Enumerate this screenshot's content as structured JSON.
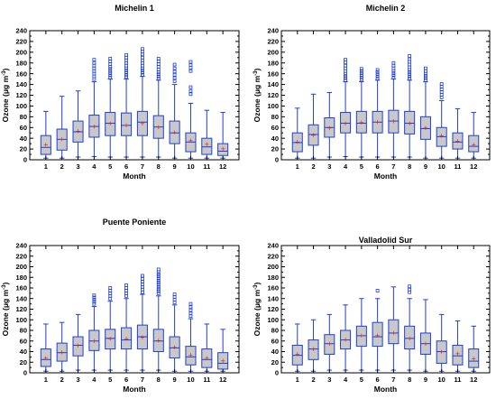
{
  "colors": {
    "box_fill": "#c8c8c8",
    "box_edge": "#1f3fd6",
    "median": "#1f3fd6",
    "mean": "#d62020",
    "outlier": "#1f3fd6"
  },
  "chart_data": [
    {
      "type": "box",
      "title": "Michelin 1",
      "xlabel": "Month",
      "ylabel_main": "Ozone (μg m",
      "ylabel_sup": "-3",
      "ylabel_close": ")",
      "ylim": [
        0,
        240
      ],
      "yticks": [
        "0",
        "20",
        "40",
        "60",
        "80",
        "100",
        "120",
        "140",
        "160",
        "180",
        "200",
        "220",
        "240"
      ],
      "categories": [
        "1",
        "2",
        "3",
        "4",
        "5",
        "6",
        "7",
        "8",
        "9",
        "10",
        "11",
        "12"
      ],
      "boxes": [
        {
          "whislo": 3,
          "q1": 10,
          "med": 23,
          "q3": 45,
          "whishi": 90,
          "mean": 28,
          "fliers": []
        },
        {
          "whislo": 3,
          "q1": 18,
          "med": 38,
          "q3": 57,
          "whishi": 118,
          "mean": 38,
          "fliers": []
        },
        {
          "whislo": 5,
          "q1": 33,
          "med": 52,
          "q3": 72,
          "whishi": 128,
          "mean": 53,
          "fliers": []
        },
        {
          "whislo": 6,
          "q1": 42,
          "med": 62,
          "q3": 83,
          "whishi": 145,
          "mean": 62,
          "fliers": [
            150,
            155,
            160,
            165,
            170,
            175,
            180,
            186
          ]
        },
        {
          "whislo": 5,
          "q1": 45,
          "med": 68,
          "q3": 88,
          "whishi": 150,
          "mean": 68,
          "fliers": [
            153,
            157,
            161,
            165,
            169,
            173,
            178,
            183,
            188
          ]
        },
        {
          "whislo": 5,
          "q1": 45,
          "med": 64,
          "q3": 87,
          "whishi": 150,
          "mean": 64,
          "fliers": [
            154,
            158,
            162,
            166,
            170,
            175,
            180,
            185,
            190,
            195
          ]
        },
        {
          "whislo": 5,
          "q1": 45,
          "med": 70,
          "q3": 90,
          "whishi": 155,
          "mean": 68,
          "fliers": [
            158,
            162,
            166,
            170,
            175,
            180,
            185,
            190,
            196,
            201,
            206
          ]
        },
        {
          "whislo": 5,
          "q1": 40,
          "med": 61,
          "q3": 82,
          "whishi": 148,
          "mean": 61,
          "fliers": [
            151,
            155,
            159,
            163,
            168,
            173,
            178,
            183,
            188
          ]
        },
        {
          "whislo": 3,
          "q1": 30,
          "med": 50,
          "q3": 72,
          "whishi": 140,
          "mean": 51,
          "fliers": [
            146,
            152,
            158,
            164,
            170,
            177
          ]
        },
        {
          "whislo": 3,
          "q1": 15,
          "med": 33,
          "q3": 50,
          "whishi": 105,
          "mean": 36,
          "fliers": [
            122,
            128,
            135,
            165,
            171,
            176,
            182
          ]
        },
        {
          "whislo": 3,
          "q1": 10,
          "med": 24,
          "q3": 40,
          "whishi": 92,
          "mean": 29,
          "fliers": []
        },
        {
          "whislo": 3,
          "q1": 8,
          "med": 16,
          "q3": 30,
          "whishi": 88,
          "mean": 21,
          "fliers": []
        }
      ]
    },
    {
      "type": "box",
      "title": "Michelin 2",
      "xlabel": "Month",
      "ylabel_main": "Ozone (μg m",
      "ylabel_sup": "-3",
      "ylabel_close": ")",
      "ylim": [
        0,
        240
      ],
      "yticks": [
        "0",
        "20",
        "40",
        "60",
        "80",
        "100",
        "120",
        "140",
        "160",
        "180",
        "200",
        "220",
        "240"
      ],
      "categories": [
        "1",
        "2",
        "3",
        "4",
        "5",
        "6",
        "7",
        "8",
        "9",
        "10",
        "11",
        "12"
      ],
      "boxes": [
        {
          "whislo": 3,
          "q1": 15,
          "med": 32,
          "q3": 50,
          "whishi": 96,
          "mean": 33,
          "fliers": []
        },
        {
          "whislo": 3,
          "q1": 27,
          "med": 47,
          "q3": 65,
          "whishi": 122,
          "mean": 46,
          "fliers": []
        },
        {
          "whislo": 5,
          "q1": 42,
          "med": 60,
          "q3": 78,
          "whishi": 125,
          "mean": 59,
          "fliers": []
        },
        {
          "whislo": 6,
          "q1": 50,
          "med": 68,
          "q3": 88,
          "whishi": 145,
          "mean": 68,
          "fliers": [
            148,
            152,
            156,
            160,
            165,
            170,
            175,
            181,
            186
          ]
        },
        {
          "whislo": 5,
          "q1": 50,
          "med": 68,
          "q3": 90,
          "whishi": 145,
          "mean": 69,
          "fliers": [
            149,
            153,
            157,
            161,
            165,
            169
          ]
        },
        {
          "whislo": 5,
          "q1": 50,
          "med": 70,
          "q3": 90,
          "whishi": 148,
          "mean": 70,
          "fliers": [
            151,
            155,
            159,
            163,
            167
          ]
        },
        {
          "whislo": 5,
          "q1": 50,
          "med": 72,
          "q3": 92,
          "whishi": 150,
          "mean": 72,
          "fliers": [
            153,
            157,
            161,
            165,
            170,
            175,
            180
          ]
        },
        {
          "whislo": 5,
          "q1": 48,
          "med": 68,
          "q3": 90,
          "whishi": 148,
          "mean": 68,
          "fliers": [
            151,
            155,
            159,
            163,
            167,
            172,
            177,
            182,
            187,
            193
          ]
        },
        {
          "whislo": 3,
          "q1": 38,
          "med": 58,
          "q3": 80,
          "whishi": 145,
          "mean": 59,
          "fliers": [
            148,
            152,
            156,
            160,
            165,
            170
          ]
        },
        {
          "whislo": 3,
          "q1": 25,
          "med": 43,
          "q3": 60,
          "whishi": 110,
          "mean": 45,
          "fliers": [
            116,
            121,
            126,
            131,
            136,
            141
          ]
        },
        {
          "whislo": 3,
          "q1": 20,
          "med": 33,
          "q3": 50,
          "whishi": 95,
          "mean": 35,
          "fliers": []
        },
        {
          "whislo": 3,
          "q1": 15,
          "med": 25,
          "q3": 45,
          "whishi": 88,
          "mean": 28,
          "fliers": []
        }
      ]
    },
    {
      "type": "box",
      "title": "Puente Poniente",
      "xlabel": "Month",
      "ylabel_main": "Ozone (μg m",
      "ylabel_sup": "-3",
      "ylabel_close": ")",
      "ylim": [
        0,
        240
      ],
      "yticks": [
        "0",
        "20",
        "40",
        "60",
        "80",
        "100",
        "120",
        "140",
        "160",
        "180",
        "200",
        "220",
        "240"
      ],
      "categories": [
        "1",
        "2",
        "3",
        "4",
        "5",
        "6",
        "7",
        "8",
        "9",
        "10",
        "11",
        "12"
      ],
      "boxes": [
        {
          "whislo": 3,
          "q1": 12,
          "med": 25,
          "q3": 45,
          "whishi": 92,
          "mean": 28,
          "fliers": []
        },
        {
          "whislo": 3,
          "q1": 22,
          "med": 38,
          "q3": 56,
          "whishi": 95,
          "mean": 39,
          "fliers": []
        },
        {
          "whislo": 5,
          "q1": 32,
          "med": 52,
          "q3": 68,
          "whishi": 110,
          "mean": 52,
          "fliers": []
        },
        {
          "whislo": 5,
          "q1": 42,
          "med": 60,
          "q3": 80,
          "whishi": 125,
          "mean": 60,
          "fliers": [
            130,
            134,
            138,
            142,
            146
          ]
        },
        {
          "whislo": 5,
          "q1": 45,
          "med": 65,
          "q3": 82,
          "whishi": 135,
          "mean": 64,
          "fliers": [
            140,
            145,
            150,
            155,
            160
          ]
        },
        {
          "whislo": 5,
          "q1": 45,
          "med": 62,
          "q3": 85,
          "whishi": 140,
          "mean": 64,
          "fliers": [
            145,
            150,
            155,
            160,
            165
          ]
        },
        {
          "whislo": 5,
          "q1": 45,
          "med": 68,
          "q3": 90,
          "whishi": 148,
          "mean": 67,
          "fliers": [
            152,
            157,
            162,
            167,
            172,
            177,
            183
          ]
        },
        {
          "whislo": 5,
          "q1": 40,
          "med": 60,
          "q3": 82,
          "whishi": 145,
          "mean": 61,
          "fliers": [
            150,
            154,
            158,
            162,
            166,
            170,
            174,
            178,
            182,
            186,
            190,
            195
          ]
        },
        {
          "whislo": 3,
          "q1": 28,
          "med": 47,
          "q3": 68,
          "whishi": 128,
          "mean": 48,
          "fliers": [
            133,
            138,
            143,
            148
          ]
        },
        {
          "whislo": 3,
          "q1": 15,
          "med": 30,
          "q3": 50,
          "whishi": 102,
          "mean": 34,
          "fliers": [
            107,
            112,
            118,
            124,
            130
          ]
        },
        {
          "whislo": 3,
          "q1": 10,
          "med": 25,
          "q3": 45,
          "whishi": 92,
          "mean": 28,
          "fliers": []
        },
        {
          "whislo": 3,
          "q1": 7,
          "med": 18,
          "q3": 38,
          "whishi": 82,
          "mean": 23,
          "fliers": []
        }
      ]
    },
    {
      "type": "box",
      "title": "Valladolid Sur",
      "xlabel": "Month",
      "ylabel_main": "Ozone (μg m",
      "ylabel_sup": "-3",
      "ylabel_close": ")",
      "ylim": [
        0,
        240
      ],
      "yticks": [
        "0",
        "20",
        "40",
        "60",
        "80",
        "100",
        "120",
        "140",
        "160",
        "180",
        "200",
        "220",
        "240"
      ],
      "categories": [
        "1",
        "2",
        "3",
        "4",
        "5",
        "6",
        "7",
        "8",
        "9",
        "10",
        "11",
        "12"
      ],
      "boxes": [
        {
          "whislo": 3,
          "q1": 15,
          "med": 33,
          "q3": 52,
          "whishi": 92,
          "mean": 35,
          "fliers": []
        },
        {
          "whislo": 3,
          "q1": 25,
          "med": 45,
          "q3": 62,
          "whishi": 100,
          "mean": 45,
          "fliers": []
        },
        {
          "whislo": 5,
          "q1": 35,
          "med": 55,
          "q3": 72,
          "whishi": 110,
          "mean": 55,
          "fliers": []
        },
        {
          "whislo": 5,
          "q1": 45,
          "med": 62,
          "q3": 80,
          "whishi": 128,
          "mean": 63,
          "fliers": []
        },
        {
          "whislo": 5,
          "q1": 50,
          "med": 70,
          "q3": 88,
          "whishi": 140,
          "mean": 70,
          "fliers": []
        },
        {
          "whislo": 5,
          "q1": 50,
          "med": 68,
          "q3": 95,
          "whishi": 140,
          "mean": 70,
          "fliers": [
            155
          ]
        },
        {
          "whislo": 5,
          "q1": 55,
          "med": 75,
          "q3": 100,
          "whishi": 162,
          "mean": 75,
          "fliers": []
        },
        {
          "whislo": 5,
          "q1": 45,
          "med": 65,
          "q3": 88,
          "whishi": 140,
          "mean": 65,
          "fliers": [
            152,
            157,
            163
          ]
        },
        {
          "whislo": 3,
          "q1": 35,
          "med": 55,
          "q3": 75,
          "whishi": 138,
          "mean": 55,
          "fliers": []
        },
        {
          "whislo": 3,
          "q1": 18,
          "med": 40,
          "q3": 60,
          "whishi": 110,
          "mean": 40,
          "fliers": []
        },
        {
          "whislo": 3,
          "q1": 15,
          "med": 32,
          "q3": 52,
          "whishi": 98,
          "mean": 36,
          "fliers": []
        },
        {
          "whislo": 3,
          "q1": 10,
          "med": 22,
          "q3": 45,
          "whishi": 88,
          "mean": 27,
          "fliers": []
        }
      ]
    }
  ]
}
